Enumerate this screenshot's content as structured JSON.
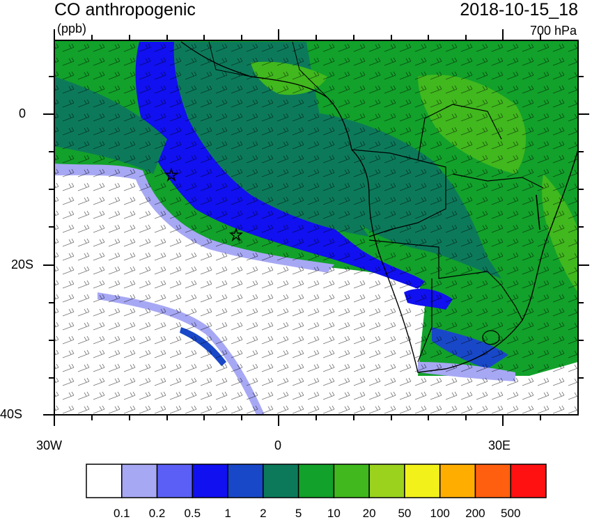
{
  "title": "CO anthropogenic",
  "units": "(ppb)",
  "datetime": "2018-10-15_18",
  "level": "700 hPa",
  "y_axis": {
    "ticks": [
      "0",
      "20S",
      "40S"
    ]
  },
  "x_axis": {
    "ticks": [
      "30W",
      "0",
      "30E"
    ]
  },
  "colorbar": {
    "labels": [
      "0.1",
      "0.2",
      "0.5",
      "1",
      "2",
      "5",
      "10",
      "20",
      "50",
      "100",
      "200",
      "500"
    ],
    "colors": [
      "#ffffff",
      "#a7a8f4",
      "#5b5ff5",
      "#1010f0",
      "#1848c8",
      "#0c7a5a",
      "#12a12a",
      "#40b81e",
      "#9ad21e",
      "#f2f21a",
      "#ffae00",
      "#ff5f0e",
      "#ff1111"
    ]
  },
  "markers": [
    "star",
    "star"
  ]
}
